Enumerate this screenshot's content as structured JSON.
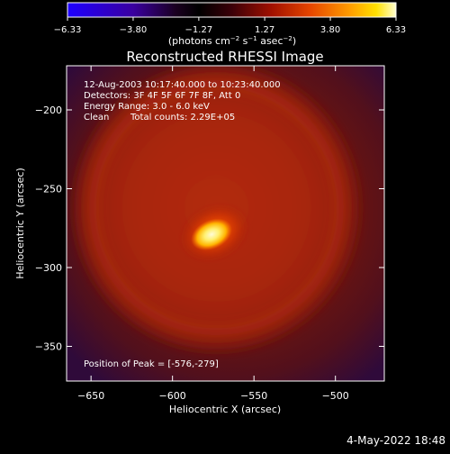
{
  "chart_data": {
    "type": "heatmap",
    "title": "Reconstructed RHESSI Image",
    "xlabel": "Heliocentric X (arcsec)",
    "ylabel": "Heliocentric Y (arcsec)",
    "xlim": [
      -665,
      -470
    ],
    "ylim": [
      -372,
      -172
    ],
    "x_ticks": [
      -650,
      -600,
      -550,
      -500
    ],
    "x_tick_labels": [
      "−650",
      "−600",
      "−550",
      "−500"
    ],
    "y_ticks": [
      -350,
      -300,
      -250,
      -200
    ],
    "y_tick_labels": [
      "−350",
      "−300",
      "−250",
      "−200"
    ],
    "colorbar": {
      "ticks": [
        -6.33,
        -3.8,
        -1.27,
        1.27,
        3.8,
        6.33
      ],
      "tick_labels": [
        "−6.33",
        "−3.80",
        "−1.27",
        "1.27",
        "3.80",
        "6.33"
      ],
      "range": [
        -6.33,
        6.33
      ],
      "unit_label_parts": [
        "(photons cm",
        "−2",
        " s",
        "−1",
        " asec",
        "−2",
        ")"
      ]
    },
    "annotations": {
      "time": "12-Aug-2003 10:17:40.000 to 10:23:40.000",
      "detectors": "Detectors: 3F 4F 5F 6F 7F 8F, Att 0",
      "energy": "Energy Range: 3.0 - 6.0 keV",
      "method": "Clean",
      "counts": "Total counts: 2.29E+05",
      "peak": "Position of Peak = [-576,-279]"
    },
    "peak": [
      -576,
      -279
    ],
    "sources": [
      {
        "x": -576,
        "y": -279,
        "role": "peak"
      }
    ],
    "ring": {
      "center": [
        -573,
        -262
      ],
      "radius": 95
    }
  },
  "footer": {
    "timestamp": "4-May-2022 18:48"
  }
}
